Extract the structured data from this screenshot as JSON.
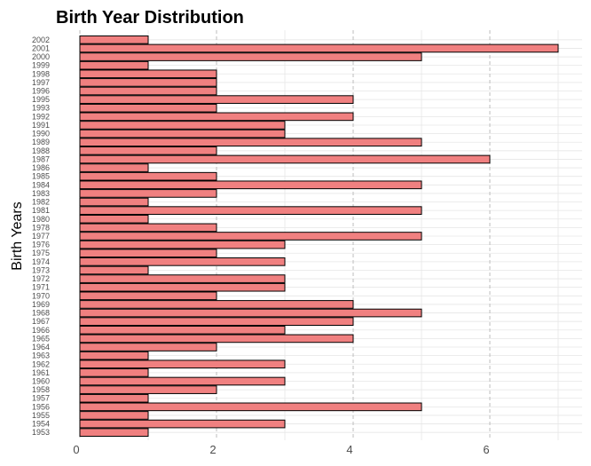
{
  "chart_data": {
    "type": "bar",
    "orientation": "horizontal",
    "title": "Birth Year Distribution",
    "xlabel": "",
    "ylabel": "Birth Years",
    "xlim": [
      0,
      7.35
    ],
    "xticks": [
      "0",
      "2",
      "4",
      "6"
    ],
    "grid": true,
    "legend": "none",
    "categories": [
      "1953",
      "1954",
      "1955",
      "1956",
      "1957",
      "1958",
      "1960",
      "1961",
      "1962",
      "1963",
      "1964",
      "1965",
      "1966",
      "1967",
      "1968",
      "1969",
      "1970",
      "1971",
      "1972",
      "1973",
      "1974",
      "1975",
      "1976",
      "1977",
      "1978",
      "1980",
      "1981",
      "1982",
      "1983",
      "1984",
      "1985",
      "1986",
      "1987",
      "1988",
      "1989",
      "1990",
      "1991",
      "1992",
      "1993",
      "1995",
      "1996",
      "1997",
      "1998",
      "1999",
      "2000",
      "2001",
      "2002"
    ],
    "values": [
      1,
      3,
      1,
      5,
      1,
      2,
      3,
      1,
      3,
      1,
      2,
      4,
      3,
      4,
      5,
      4,
      2,
      3,
      3,
      1,
      3,
      2,
      3,
      5,
      2,
      1,
      5,
      1,
      2,
      5,
      2,
      1,
      6,
      2,
      5,
      3,
      3,
      4,
      2,
      4,
      2,
      2,
      2,
      1,
      5,
      7,
      1
    ]
  },
  "colors": {
    "bar_fill": "#F08080",
    "bar_stroke": "#000000",
    "grid_major": "#bdbdbd",
    "grid_minor": "#e6e6e6",
    "tick_text": "#4d4d4d"
  }
}
